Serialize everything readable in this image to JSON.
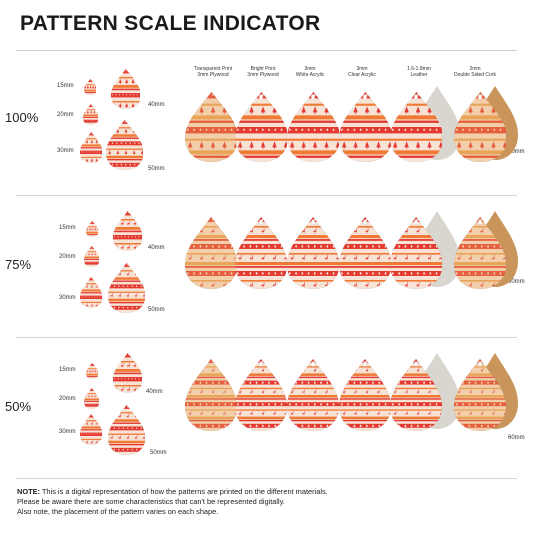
{
  "title": "PATTERN SCALE INDICATOR",
  "columns": [
    {
      "line1": "Transparent Print",
      "line2": "3mm Plywood"
    },
    {
      "line1": "Bright Print",
      "line2": "3mm Plywood"
    },
    {
      "line1": "3mm",
      "line2": "White Acrylic"
    },
    {
      "line1": "3mm",
      "line2": "Clear Acrylic"
    },
    {
      "line1": "1.6-1.8mm",
      "line2": "Leather"
    },
    {
      "line1": "2mm",
      "line2": "Double Sided Cork"
    }
  ],
  "sizes": {
    "s15": "15mm",
    "s20": "20mm",
    "s30": "30mm",
    "s40": "40mm",
    "s50": "50mm",
    "s60": "60mm"
  },
  "scales": [
    {
      "label": "100%",
      "motif": "tree-icon"
    },
    {
      "label": "75%",
      "motif": "reindeer-icon"
    },
    {
      "label": "50%",
      "motif": "reindeer-icon"
    }
  ],
  "colors": {
    "pattern_red": "#e43a31",
    "pattern_orange": "#f07a35",
    "pattern_cream": "#f7e3d6",
    "plywood_tint": "#e9a55a",
    "leather": "#d9d6cf",
    "cork": "#c9955a"
  },
  "note": {
    "label": "NOTE:",
    "line1": "This is a digital representation of how the patterns are printed on the different materials.",
    "line2": "Please be aware there are some characteristics that can't be represented digitally.",
    "line3": "Also note, the placement of the pattern varies on each shape."
  }
}
